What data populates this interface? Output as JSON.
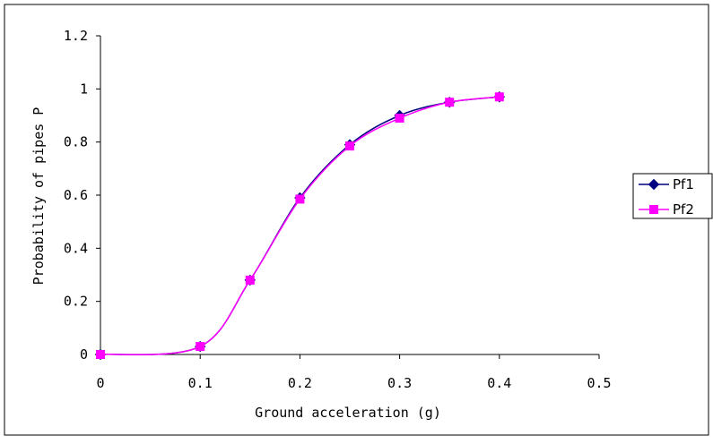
{
  "chart_data": {
    "type": "line",
    "xlabel": "Ground acceleration (g)",
    "ylabel": "Probability of pipes P",
    "xlim": [
      0,
      0.5
    ],
    "ylim": [
      0,
      1.2
    ],
    "x_ticks": [
      "0",
      "0.1",
      "0.2",
      "0.3",
      "0.4",
      "0.5"
    ],
    "y_ticks": [
      "0",
      "0.2",
      "0.4",
      "0.6",
      "0.8",
      "1",
      "1.2"
    ],
    "grid": false,
    "legend_position": "right",
    "series": [
      {
        "name": "Pf1",
        "color": "#000080",
        "marker": "diamond",
        "x": [
          0,
          0.1,
          0.15,
          0.2,
          0.25,
          0.3,
          0.35,
          0.4
        ],
        "y": [
          0.0,
          0.03,
          0.28,
          0.59,
          0.79,
          0.9,
          0.95,
          0.97
        ]
      },
      {
        "name": "Pf2",
        "color": "#ff00ff",
        "marker": "square",
        "x": [
          0,
          0.1,
          0.15,
          0.2,
          0.25,
          0.3,
          0.35,
          0.4
        ],
        "y": [
          0.0,
          0.03,
          0.28,
          0.585,
          0.785,
          0.89,
          0.95,
          0.97
        ]
      }
    ]
  }
}
